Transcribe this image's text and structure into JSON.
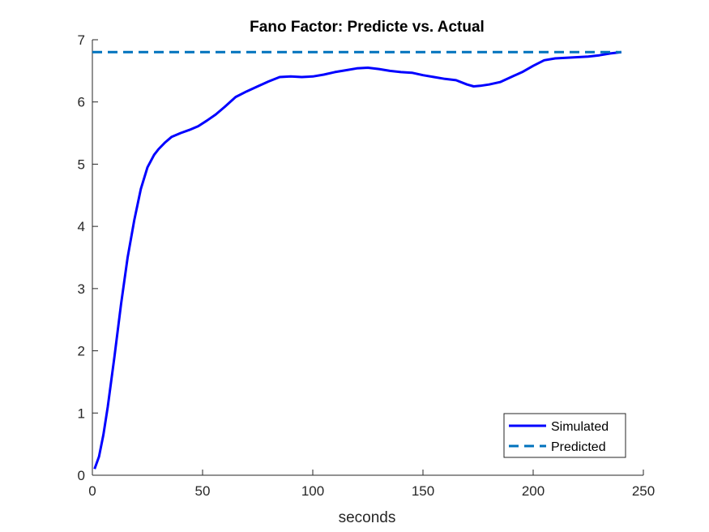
{
  "chart_data": {
    "type": "line",
    "title": "Fano Factor: Predicte vs. Actual",
    "xlabel": "seconds",
    "ylabel": "",
    "xlim": [
      0,
      250
    ],
    "ylim": [
      0,
      7
    ],
    "xticks": [
      0,
      50,
      100,
      150,
      200,
      250
    ],
    "yticks": [
      0,
      1,
      2,
      3,
      4,
      5,
      6,
      7
    ],
    "grid": false,
    "legend_position": "bottom-right",
    "series": [
      {
        "name": "Simulated",
        "color": "#0000ff",
        "style": "solid",
        "x": [
          1,
          3,
          5,
          7,
          10,
          13,
          16,
          19,
          22,
          25,
          28,
          30,
          33,
          36,
          40,
          44,
          48,
          52,
          56,
          60,
          65,
          70,
          75,
          80,
          85,
          90,
          95,
          100,
          105,
          110,
          115,
          120,
          125,
          130,
          135,
          140,
          145,
          150,
          155,
          160,
          165,
          170,
          173,
          176,
          180,
          185,
          190,
          195,
          200,
          205,
          210,
          215,
          220,
          225,
          230,
          235,
          240
        ],
        "y": [
          0.1,
          0.3,
          0.65,
          1.1,
          1.9,
          2.75,
          3.5,
          4.1,
          4.6,
          4.95,
          5.15,
          5.24,
          5.35,
          5.44,
          5.5,
          5.55,
          5.61,
          5.7,
          5.8,
          5.92,
          6.08,
          6.17,
          6.25,
          6.33,
          6.4,
          6.41,
          6.4,
          6.41,
          6.44,
          6.48,
          6.51,
          6.54,
          6.55,
          6.53,
          6.5,
          6.48,
          6.47,
          6.43,
          6.4,
          6.37,
          6.35,
          6.28,
          6.25,
          6.26,
          6.28,
          6.32,
          6.4,
          6.48,
          6.58,
          6.67,
          6.7,
          6.71,
          6.72,
          6.73,
          6.75,
          6.78,
          6.8
        ]
      },
      {
        "name": "Predicted",
        "color": "#0072bd",
        "style": "dashed",
        "x": [
          0,
          240
        ],
        "y": [
          6.8,
          6.8
        ]
      }
    ]
  }
}
